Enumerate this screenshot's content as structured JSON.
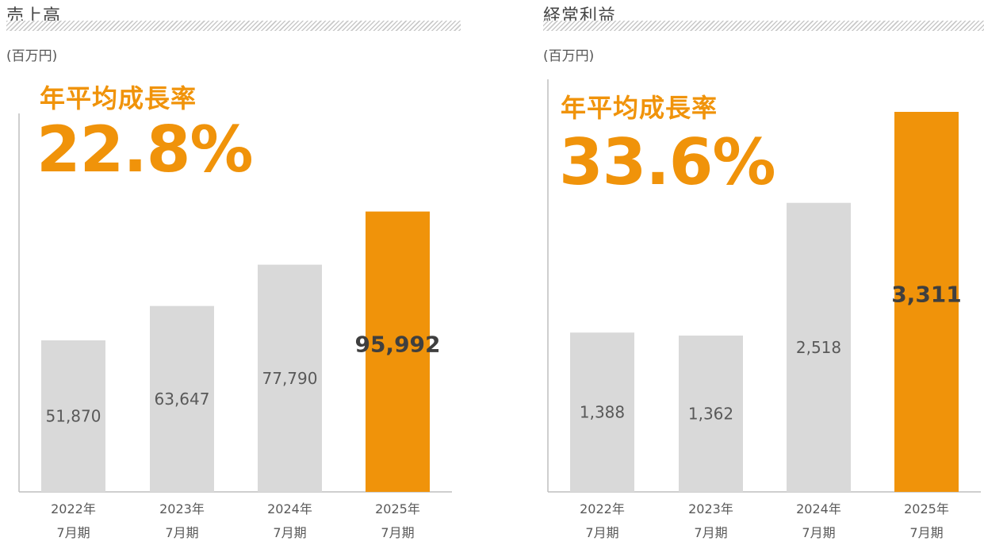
{
  "chart_data": [
    {
      "type": "bar",
      "title": "売上高",
      "unit_label": "(百万円)",
      "cagr_label": "年平均成長率",
      "cagr_value": "22.8%",
      "categories": [
        [
          "2022年",
          "7月期"
        ],
        [
          "2023年",
          "7月期"
        ],
        [
          "2024年",
          "7月期"
        ],
        [
          "2025年",
          "7月期"
        ]
      ],
      "values": [
        51870,
        63647,
        77790,
        95992
      ],
      "value_labels": [
        "51,870",
        "63,647",
        "77,790",
        "95,992"
      ],
      "highlight_index": 3,
      "ylim": [
        0,
        113000
      ],
      "grid": false
    },
    {
      "type": "bar",
      "title": "経常利益",
      "unit_label": "(百万円)",
      "cagr_label": "年平均成長率",
      "cagr_value": "33.6%",
      "categories": [
        [
          "2022年",
          "7月期"
        ],
        [
          "2023年",
          "7月期"
        ],
        [
          "2024年",
          "7月期"
        ],
        [
          "2025年",
          "7月期"
        ]
      ],
      "values": [
        1388,
        1362,
        2518,
        3311
      ],
      "value_labels": [
        "1,388",
        "1,362",
        "2,518",
        "3,311"
      ],
      "highlight_index": 3,
      "ylim": [
        0,
        3311
      ],
      "grid": false
    }
  ],
  "colors": {
    "bar": "#d9d9d9",
    "highlight": "#f0930a",
    "label": "#595959",
    "highlight_label": "#3f3f3f"
  }
}
